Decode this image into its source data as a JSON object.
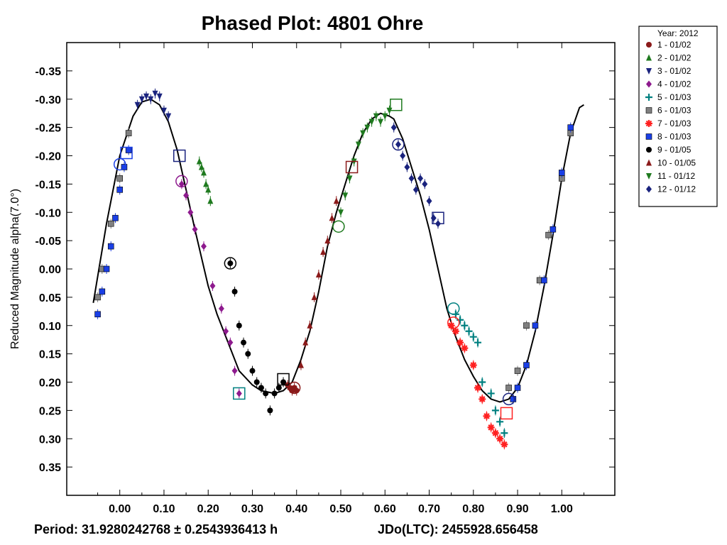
{
  "chart_data": {
    "type": "scatter",
    "title": "Phased Plot: 4801 Ohre",
    "xlabel": "",
    "ylabel": "Reduced Magnitude alpha(7.0°)",
    "xlim": [
      -0.12,
      1.12
    ],
    "ylim": [
      0.4,
      -0.4
    ],
    "y_inverted": true,
    "x_ticks": [
      0.0,
      0.1,
      0.2,
      0.3,
      0.4,
      0.5,
      0.6,
      0.7,
      0.8,
      0.9,
      1.0
    ],
    "x_tick_labels": [
      "0.00",
      "0.10",
      "0.20",
      "0.30",
      "0.40",
      "0.50",
      "0.60",
      "0.70",
      "0.80",
      "0.90",
      "1.00"
    ],
    "y_ticks": [
      -0.35,
      -0.3,
      -0.25,
      -0.2,
      -0.15,
      -0.1,
      -0.05,
      0.0,
      0.05,
      0.1,
      0.15,
      0.2,
      0.25,
      0.3,
      0.35
    ],
    "y_tick_labels": [
      "-0.35",
      "-0.30",
      "-0.25",
      "-0.20",
      "-0.15",
      "-0.10",
      "-0.05",
      "0.00",
      "0.05",
      "0.10",
      "0.15",
      "0.20",
      "0.25",
      "0.30",
      "0.35"
    ],
    "grid": false,
    "legend_title": "Year: 2012",
    "legend_position": "outside-top-right",
    "footer_period": "Period: 31.9280242768 ± 0.2543936413 h",
    "footer_jd": "JDo(LTC): 2455928.656458",
    "fit_curve": {
      "x": [
        -0.06,
        -0.03,
        0.0,
        0.03,
        0.05,
        0.07,
        0.09,
        0.11,
        0.13,
        0.15,
        0.17,
        0.2,
        0.22,
        0.25,
        0.27,
        0.3,
        0.32,
        0.35,
        0.37,
        0.39,
        0.41,
        0.43,
        0.45,
        0.47,
        0.49,
        0.51,
        0.53,
        0.55,
        0.57,
        0.59,
        0.61,
        0.62,
        0.64,
        0.66,
        0.68,
        0.7,
        0.72,
        0.74,
        0.76,
        0.78,
        0.8,
        0.82,
        0.84,
        0.86,
        0.88,
        0.9,
        0.92,
        0.94,
        0.96,
        0.98,
        1.0,
        1.02,
        1.04,
        1.05
      ],
      "y": [
        0.06,
        -0.08,
        -0.2,
        -0.27,
        -0.295,
        -0.3,
        -0.29,
        -0.26,
        -0.21,
        -0.14,
        -0.07,
        0.03,
        0.08,
        0.14,
        0.18,
        0.205,
        0.215,
        0.22,
        0.215,
        0.2,
        0.16,
        0.11,
        0.04,
        -0.04,
        -0.1,
        -0.15,
        -0.2,
        -0.24,
        -0.265,
        -0.275,
        -0.27,
        -0.265,
        -0.23,
        -0.18,
        -0.13,
        -0.07,
        0.0,
        0.07,
        0.12,
        0.16,
        0.19,
        0.215,
        0.23,
        0.235,
        0.23,
        0.21,
        0.17,
        0.11,
        0.03,
        -0.06,
        -0.16,
        -0.24,
        -0.285,
        -0.29
      ]
    },
    "series": [
      {
        "name": "1 - 01/02",
        "color": "#8b1a1a",
        "marker": "circle",
        "x": [
          0.38,
          0.385,
          0.39,
          0.395,
          0.4
        ],
        "y": [
          0.205,
          0.21,
          0.215,
          0.21,
          0.215
        ]
      },
      {
        "name": "2 - 01/02",
        "color": "#1f7a1f",
        "marker": "triangle-up",
        "x": [
          0.18,
          0.185,
          0.19,
          0.195,
          0.2,
          0.205
        ],
        "y": [
          -0.19,
          -0.18,
          -0.17,
          -0.15,
          -0.14,
          -0.12
        ]
      },
      {
        "name": "3 - 01/02",
        "color": "#1a237e",
        "marker": "triangle-down",
        "x": [
          0.04,
          0.05,
          0.06,
          0.07,
          0.08,
          0.09,
          0.1,
          0.11
        ],
        "y": [
          -0.29,
          -0.3,
          -0.305,
          -0.3,
          -0.31,
          -0.305,
          -0.28,
          -0.27
        ]
      },
      {
        "name": "4 - 01/02",
        "color": "#8e1a8e",
        "marker": "diamond",
        "x": [
          0.14,
          0.15,
          0.16,
          0.17,
          0.19,
          0.21,
          0.23,
          0.24,
          0.25,
          0.26,
          0.27
        ],
        "y": [
          -0.15,
          -0.13,
          -0.1,
          -0.07,
          -0.04,
          0.03,
          0.07,
          0.11,
          0.13,
          0.18,
          0.22
        ]
      },
      {
        "name": "5 - 01/03",
        "color": "#008080",
        "marker": "plus",
        "x": [
          0.76,
          0.77,
          0.78,
          0.79,
          0.8,
          0.81,
          0.82,
          0.84,
          0.85,
          0.86,
          0.87
        ],
        "y": [
          0.08,
          0.09,
          0.1,
          0.11,
          0.12,
          0.13,
          0.2,
          0.22,
          0.25,
          0.27,
          0.29
        ]
      },
      {
        "name": "6 - 01/03",
        "color": "#808080",
        "marker": "square",
        "x": [
          -0.05,
          -0.04,
          -0.02,
          0.0,
          0.02,
          0.88,
          0.9,
          0.92,
          0.95,
          0.97,
          1.0,
          1.02
        ],
        "y": [
          0.05,
          0.0,
          -0.08,
          -0.16,
          -0.24,
          0.21,
          0.18,
          0.1,
          0.02,
          -0.06,
          -0.16,
          -0.24
        ]
      },
      {
        "name": "7 - 01/03",
        "color": "#ff2020",
        "marker": "star",
        "x": [
          0.75,
          0.76,
          0.77,
          0.78,
          0.8,
          0.81,
          0.82,
          0.83,
          0.84,
          0.85,
          0.86,
          0.87
        ],
        "y": [
          0.1,
          0.11,
          0.13,
          0.14,
          0.17,
          0.21,
          0.23,
          0.26,
          0.28,
          0.29,
          0.3,
          0.31
        ]
      },
      {
        "name": "8 - 01/03",
        "color": "#1a3fe6",
        "marker": "square",
        "x": [
          -0.05,
          -0.04,
          -0.03,
          -0.02,
          -0.01,
          0.0,
          0.01,
          0.02,
          0.89,
          0.9,
          0.92,
          0.94,
          0.96,
          0.98,
          1.0,
          1.02
        ],
        "y": [
          0.08,
          0.04,
          0.0,
          -0.04,
          -0.09,
          -0.14,
          -0.18,
          -0.21,
          0.23,
          0.21,
          0.17,
          0.1,
          0.02,
          -0.07,
          -0.17,
          -0.25
        ]
      },
      {
        "name": "9 - 01/05",
        "color": "#000000",
        "marker": "circle",
        "x": [
          0.25,
          0.26,
          0.27,
          0.28,
          0.29,
          0.3,
          0.31,
          0.32,
          0.33,
          0.34,
          0.35,
          0.36,
          0.37
        ],
        "y": [
          -0.01,
          0.04,
          0.1,
          0.13,
          0.15,
          0.18,
          0.2,
          0.21,
          0.22,
          0.25,
          0.22,
          0.21,
          0.2
        ]
      },
      {
        "name": "10 - 01/05",
        "color": "#8b1a1a",
        "marker": "triangle-up",
        "x": [
          0.41,
          0.42,
          0.43,
          0.44,
          0.45,
          0.46,
          0.47,
          0.48,
          0.49
        ],
        "y": [
          0.17,
          0.13,
          0.1,
          0.05,
          0.01,
          -0.03,
          -0.05,
          -0.09,
          -0.12
        ]
      },
      {
        "name": "11 - 01/12",
        "color": "#1f7a1f",
        "marker": "triangle-down",
        "x": [
          0.5,
          0.51,
          0.52,
          0.53,
          0.54,
          0.55,
          0.56,
          0.57,
          0.58,
          0.59,
          0.6,
          0.61
        ],
        "y": [
          -0.1,
          -0.13,
          -0.16,
          -0.19,
          -0.22,
          -0.24,
          -0.25,
          -0.26,
          -0.27,
          -0.26,
          -0.27,
          -0.28
        ]
      },
      {
        "name": "12 - 01/12",
        "color": "#1a237e",
        "marker": "diamond",
        "x": [
          0.62,
          0.63,
          0.64,
          0.65,
          0.66,
          0.67,
          0.68,
          0.69,
          0.7,
          0.71,
          0.72
        ],
        "y": [
          -0.25,
          -0.22,
          -0.2,
          -0.18,
          -0.16,
          -0.14,
          -0.16,
          -0.15,
          -0.12,
          -0.09,
          -0.08
        ]
      }
    ],
    "open_markers": [
      {
        "shape": "circle",
        "series": 3,
        "x": 0.14,
        "y": -0.155
      },
      {
        "shape": "square",
        "series": 4,
        "x": 0.27,
        "y": 0.22
      },
      {
        "shape": "circle",
        "series": 8,
        "x": 0.25,
        "y": -0.01
      },
      {
        "shape": "square",
        "series": 8,
        "x": 0.37,
        "y": 0.195
      },
      {
        "shape": "circle",
        "series": 0,
        "x": 0.395,
        "y": 0.21
      },
      {
        "shape": "circle",
        "series": 1,
        "x": 0.495,
        "y": -0.075
      },
      {
        "shape": "square",
        "series": 0,
        "x": 0.525,
        "y": -0.18
      },
      {
        "shape": "square",
        "series": 10,
        "x": 0.625,
        "y": -0.29
      },
      {
        "shape": "circle",
        "series": 2,
        "x": 0.63,
        "y": -0.22
      },
      {
        "shape": "square",
        "series": 2,
        "x": 0.72,
        "y": -0.09
      },
      {
        "shape": "circle",
        "series": 4,
        "x": 0.755,
        "y": 0.07
      },
      {
        "shape": "circle",
        "series": 6,
        "x": 0.755,
        "y": 0.095
      },
      {
        "shape": "square",
        "series": 6,
        "x": 0.875,
        "y": 0.255
      },
      {
        "shape": "circle",
        "series": 11,
        "x": 0.88,
        "y": 0.23
      },
      {
        "shape": "circle",
        "series": 7,
        "x": 0.0,
        "y": -0.185
      },
      {
        "shape": "square",
        "series": 7,
        "x": 0.015,
        "y": -0.205
      },
      {
        "shape": "square",
        "series": 2,
        "x": 0.135,
        "y": -0.2
      }
    ]
  }
}
